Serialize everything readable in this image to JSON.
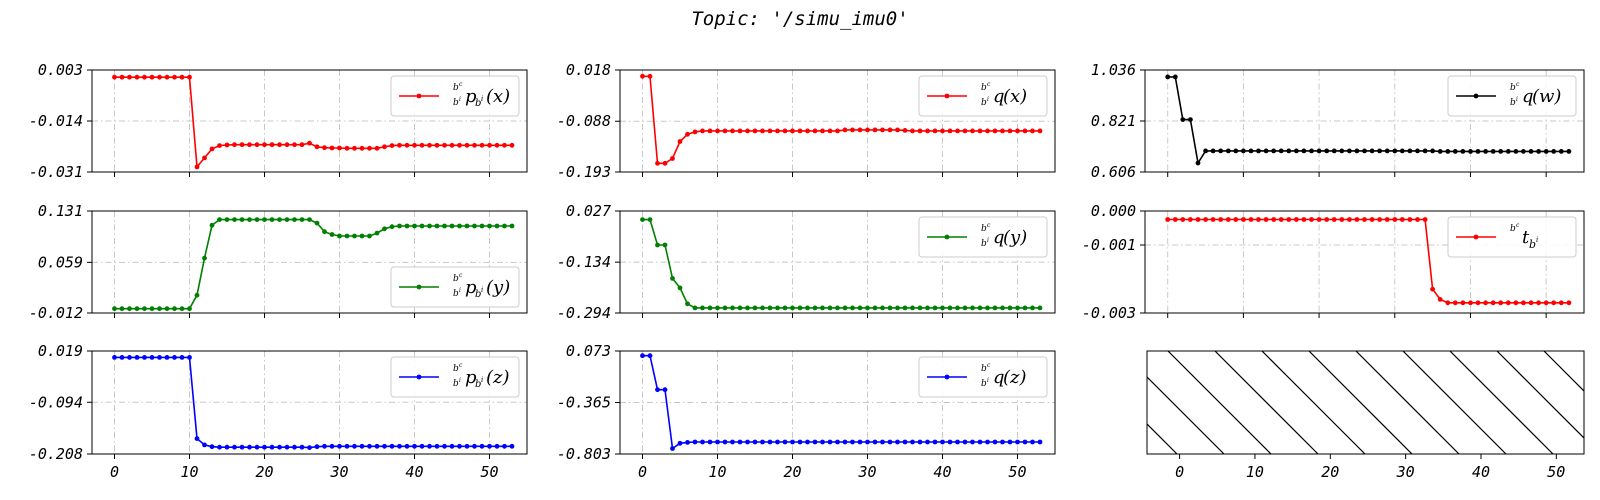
{
  "figure": {
    "title": "Topic: '/simu_imu0'"
  },
  "chart_data": [
    {
      "type": "line",
      "grid": true,
      "legend": {
        "position": "top-right",
        "prefix": "b^c",
        "sub": "b^i",
        "symbol": "p",
        "arg": "(x)"
      },
      "xlim": [
        -3,
        55
      ],
      "xticks": [
        0,
        10,
        20,
        30,
        40,
        50
      ],
      "xtick_labels_visible": false,
      "ylim": [
        -0.031,
        0.003
      ],
      "yticks": [
        0.003,
        -0.014,
        -0.031
      ],
      "series": [
        {
          "color": "#ff0000",
          "x_start": 0,
          "values": [
            0.0006,
            0.0006,
            0.0006,
            0.0006,
            0.0006,
            0.0006,
            0.0006,
            0.0006,
            0.0006,
            0.0006,
            0.0006,
            -0.0293,
            -0.0263,
            -0.0233,
            -0.0222,
            -0.022,
            -0.0219,
            -0.0219,
            -0.0219,
            -0.0219,
            -0.0219,
            -0.0219,
            -0.0219,
            -0.0219,
            -0.0219,
            -0.0219,
            -0.0214,
            -0.0226,
            -0.0229,
            -0.023,
            -0.023,
            -0.0231,
            -0.0231,
            -0.0231,
            -0.0231,
            -0.0231,
            -0.0226,
            -0.0222,
            -0.0221,
            -0.0221,
            -0.0221,
            -0.0221,
            -0.0221,
            -0.0221,
            -0.0221,
            -0.0221,
            -0.0221,
            -0.0221,
            -0.0221,
            -0.0221,
            -0.0221,
            -0.0221,
            -0.0221,
            -0.0221
          ]
        }
      ]
    },
    {
      "type": "line",
      "grid": true,
      "legend": {
        "position": "top-right",
        "prefix": "b^c",
        "sub": "b^i",
        "symbol": "q",
        "arg": "(x)"
      },
      "xlim": [
        -3,
        55
      ],
      "xticks": [
        0,
        10,
        20,
        30,
        40,
        50
      ],
      "xtick_labels_visible": false,
      "ylim": [
        -0.193,
        0.018
      ],
      "yticks": [
        0.018,
        -0.088,
        -0.193
      ],
      "series": [
        {
          "color": "#ff0000",
          "x_start": 0,
          "values": [
            0.005,
            0.005,
            -0.175,
            -0.175,
            -0.165,
            -0.13,
            -0.115,
            -0.11,
            -0.108,
            -0.108,
            -0.108,
            -0.108,
            -0.108,
            -0.108,
            -0.108,
            -0.108,
            -0.108,
            -0.108,
            -0.108,
            -0.108,
            -0.108,
            -0.108,
            -0.108,
            -0.108,
            -0.108,
            -0.108,
            -0.108,
            -0.106,
            -0.106,
            -0.106,
            -0.106,
            -0.106,
            -0.106,
            -0.106,
            -0.106,
            -0.107,
            -0.108,
            -0.108,
            -0.108,
            -0.108,
            -0.108,
            -0.108,
            -0.108,
            -0.108,
            -0.108,
            -0.108,
            -0.108,
            -0.108,
            -0.108,
            -0.108,
            -0.108,
            -0.108,
            -0.108,
            -0.108
          ]
        }
      ]
    },
    {
      "type": "line",
      "grid": true,
      "legend": {
        "position": "top-right",
        "prefix": "b^c",
        "sub": "b^i",
        "symbol": "q",
        "arg": "(w)"
      },
      "xlim": [
        -3,
        55
      ],
      "xticks": [
        0,
        10,
        20,
        30,
        40,
        50
      ],
      "xtick_labels_visible": false,
      "ylim": [
        0.606,
        1.036
      ],
      "yticks": [
        1.036,
        0.821,
        0.606
      ],
      "series": [
        {
          "color": "#000000",
          "x_start": 0,
          "values": [
            1.007,
            1.007,
            0.827,
            0.827,
            0.644,
            0.695,
            0.695,
            0.695,
            0.695,
            0.695,
            0.695,
            0.695,
            0.695,
            0.695,
            0.695,
            0.695,
            0.695,
            0.695,
            0.695,
            0.695,
            0.695,
            0.695,
            0.695,
            0.695,
            0.695,
            0.695,
            0.695,
            0.695,
            0.695,
            0.695,
            0.695,
            0.695,
            0.695,
            0.695,
            0.695,
            0.695,
            0.693,
            0.693,
            0.693,
            0.693,
            0.693,
            0.693,
            0.693,
            0.693,
            0.693,
            0.693,
            0.693,
            0.693,
            0.693,
            0.693,
            0.693,
            0.693,
            0.693,
            0.693
          ]
        }
      ]
    },
    {
      "type": "line",
      "grid": true,
      "legend": {
        "position": "bottom-right",
        "prefix": "b^c",
        "sub": "b^i",
        "symbol": "p",
        "arg": "(y)"
      },
      "xlim": [
        -3,
        55
      ],
      "xticks": [
        0,
        10,
        20,
        30,
        40,
        50
      ],
      "xtick_labels_visible": false,
      "ylim": [
        -0.012,
        0.131
      ],
      "yticks": [
        0.131,
        0.059,
        -0.012
      ],
      "series": [
        {
          "color": "#008000",
          "x_start": 0,
          "values": [
            -0.006,
            -0.006,
            -0.006,
            -0.006,
            -0.006,
            -0.006,
            -0.006,
            -0.006,
            -0.006,
            -0.006,
            -0.006,
            0.013,
            0.065,
            0.111,
            0.119,
            0.119,
            0.119,
            0.119,
            0.119,
            0.119,
            0.119,
            0.119,
            0.119,
            0.119,
            0.119,
            0.119,
            0.119,
            0.114,
            0.102,
            0.098,
            0.096,
            0.096,
            0.096,
            0.096,
            0.096,
            0.1,
            0.106,
            0.109,
            0.11,
            0.11,
            0.11,
            0.11,
            0.11,
            0.11,
            0.11,
            0.11,
            0.11,
            0.11,
            0.11,
            0.11,
            0.11,
            0.11,
            0.11,
            0.11
          ]
        }
      ]
    },
    {
      "type": "line",
      "grid": true,
      "legend": {
        "position": "top-right",
        "prefix": "b^c",
        "sub": "b^i",
        "symbol": "q",
        "arg": "(y)"
      },
      "xlim": [
        -3,
        55
      ],
      "xticks": [
        0,
        10,
        20,
        30,
        40,
        50
      ],
      "xtick_labels_visible": false,
      "ylim": [
        -0.294,
        0.027
      ],
      "yticks": [
        0.027,
        -0.134,
        -0.294
      ],
      "series": [
        {
          "color": "#008000",
          "x_start": 0,
          "values": [
            0.0,
            0.0,
            -0.08,
            -0.08,
            -0.185,
            -0.215,
            -0.265,
            -0.278,
            -0.278,
            -0.278,
            -0.278,
            -0.278,
            -0.278,
            -0.278,
            -0.278,
            -0.278,
            -0.278,
            -0.278,
            -0.278,
            -0.278,
            -0.278,
            -0.278,
            -0.278,
            -0.278,
            -0.278,
            -0.278,
            -0.278,
            -0.278,
            -0.278,
            -0.278,
            -0.278,
            -0.278,
            -0.278,
            -0.278,
            -0.278,
            -0.278,
            -0.278,
            -0.278,
            -0.278,
            -0.278,
            -0.278,
            -0.278,
            -0.278,
            -0.278,
            -0.278,
            -0.278,
            -0.278,
            -0.278,
            -0.278,
            -0.278,
            -0.278,
            -0.278,
            -0.278,
            -0.278
          ]
        }
      ]
    },
    {
      "type": "line",
      "grid": true,
      "legend": {
        "position": "top-right",
        "prefix": "b^c",
        "sub": "",
        "symbol": "t",
        "arg": "",
        "tsub": "b^i"
      },
      "xlim": [
        -3,
        55
      ],
      "xticks": [
        0,
        10,
        20,
        30,
        40,
        50
      ],
      "xtick_labels_visible": false,
      "ylim": [
        -0.003,
        0.0
      ],
      "yticks": [
        0.0,
        -0.001,
        -0.003
      ],
      "series": [
        {
          "color": "#ff0000",
          "x_start": 0,
          "values": [
            -0.00025,
            -0.00025,
            -0.00025,
            -0.00025,
            -0.00025,
            -0.00025,
            -0.00025,
            -0.00025,
            -0.00025,
            -0.00025,
            -0.00025,
            -0.00025,
            -0.00025,
            -0.00025,
            -0.00025,
            -0.00025,
            -0.00025,
            -0.00025,
            -0.00025,
            -0.00025,
            -0.00025,
            -0.00025,
            -0.00025,
            -0.00025,
            -0.00025,
            -0.00025,
            -0.00025,
            -0.00025,
            -0.00025,
            -0.00025,
            -0.00025,
            -0.00025,
            -0.00025,
            -0.00025,
            -0.00025,
            -0.0023,
            -0.0026,
            -0.0027,
            -0.0027,
            -0.0027,
            -0.0027,
            -0.0027,
            -0.0027,
            -0.0027,
            -0.0027,
            -0.0027,
            -0.0027,
            -0.0027,
            -0.0027,
            -0.0027,
            -0.0027,
            -0.0027,
            -0.0027,
            -0.0027
          ]
        }
      ]
    },
    {
      "type": "line",
      "grid": true,
      "legend": {
        "position": "top-right",
        "prefix": "b^c",
        "sub": "b^i",
        "symbol": "p",
        "arg": "(z)"
      },
      "xlim": [
        -3,
        55
      ],
      "xticks": [
        0,
        10,
        20,
        30,
        40,
        50
      ],
      "xtick_labels_visible": true,
      "ylim": [
        -0.208,
        0.019
      ],
      "yticks": [
        0.019,
        -0.094,
        -0.208
      ],
      "series": [
        {
          "color": "#0000ff",
          "x_start": 0,
          "values": [
            0.005,
            0.005,
            0.005,
            0.005,
            0.005,
            0.005,
            0.005,
            0.005,
            0.005,
            0.005,
            0.005,
            -0.174,
            -0.188,
            -0.192,
            -0.193,
            -0.193,
            -0.193,
            -0.193,
            -0.193,
            -0.193,
            -0.193,
            -0.193,
            -0.193,
            -0.193,
            -0.193,
            -0.193,
            -0.194,
            -0.192,
            -0.191,
            -0.191,
            -0.191,
            -0.191,
            -0.191,
            -0.191,
            -0.191,
            -0.191,
            -0.191,
            -0.191,
            -0.191,
            -0.191,
            -0.191,
            -0.191,
            -0.191,
            -0.191,
            -0.191,
            -0.191,
            -0.191,
            -0.191,
            -0.191,
            -0.191,
            -0.191,
            -0.191,
            -0.191,
            -0.191
          ]
        }
      ]
    },
    {
      "type": "line",
      "grid": true,
      "legend": {
        "position": "top-right",
        "prefix": "b^c",
        "sub": "b^i",
        "symbol": "q",
        "arg": "(z)"
      },
      "xlim": [
        -3,
        55
      ],
      "xticks": [
        0,
        10,
        20,
        30,
        40,
        50
      ],
      "xtick_labels_visible": true,
      "ylim": [
        -0.803,
        0.073
      ],
      "yticks": [
        0.073,
        -0.365,
        -0.803
      ],
      "series": [
        {
          "color": "#0000ff",
          "x_start": 0,
          "values": [
            0.033,
            0.033,
            -0.256,
            -0.256,
            -0.756,
            -0.712,
            -0.704,
            -0.701,
            -0.701,
            -0.701,
            -0.701,
            -0.701,
            -0.701,
            -0.701,
            -0.701,
            -0.701,
            -0.701,
            -0.701,
            -0.701,
            -0.701,
            -0.701,
            -0.701,
            -0.701,
            -0.701,
            -0.701,
            -0.701,
            -0.701,
            -0.701,
            -0.701,
            -0.701,
            -0.701,
            -0.701,
            -0.701,
            -0.701,
            -0.701,
            -0.701,
            -0.701,
            -0.701,
            -0.701,
            -0.701,
            -0.701,
            -0.701,
            -0.701,
            -0.701,
            -0.701,
            -0.701,
            -0.701,
            -0.701,
            -0.701,
            -0.701,
            -0.701,
            -0.701,
            -0.701,
            -0.701
          ]
        }
      ]
    },
    {
      "type": "hatched-empty",
      "grid": false,
      "xlim": [
        -3,
        55
      ],
      "xticks": [
        0,
        10,
        20,
        30,
        40,
        50
      ],
      "xtick_labels_visible": true,
      "series": []
    }
  ]
}
